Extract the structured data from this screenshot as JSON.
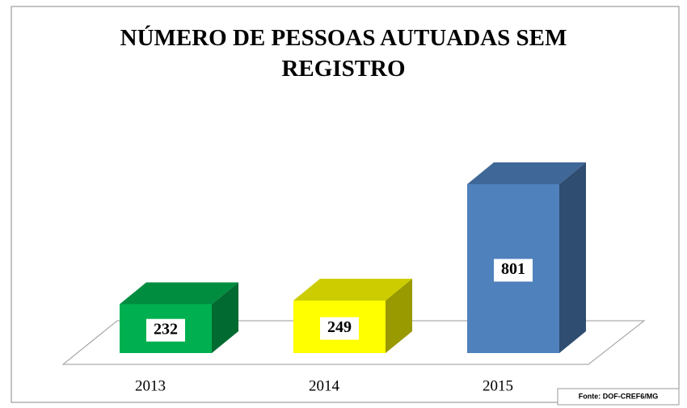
{
  "chart_data": {
    "type": "bar3d",
    "title": "NÚMERO DE PESSOAS AUTUADAS SEM REGISTRO",
    "categories": [
      "2013",
      "2014",
      "2015"
    ],
    "values": [
      232,
      249,
      801
    ],
    "colors": [
      "#00b050",
      "#ffff00",
      "#4f81bd"
    ],
    "source": "Fonte: DOF-CREF6/MG"
  }
}
